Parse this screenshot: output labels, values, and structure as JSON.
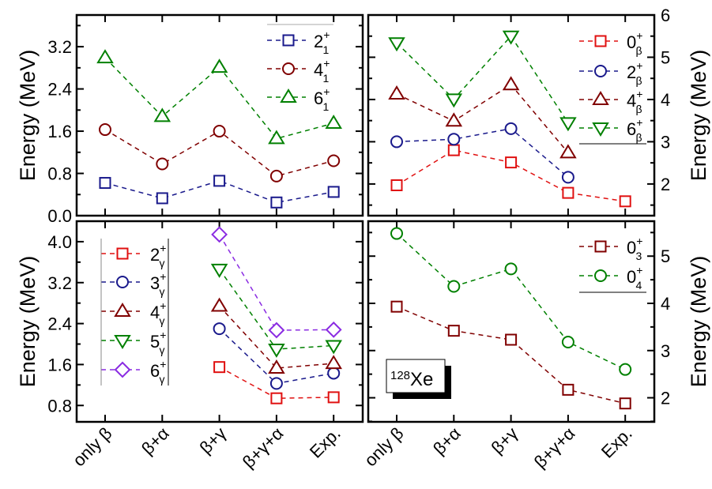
{
  "chart_data": [
    {
      "type": "line",
      "panel": "top-left",
      "ylabel": "Energy (MeV)",
      "yaxis_side": "left",
      "ylim": [
        0,
        3.8
      ],
      "yticks": [
        "0.0",
        "0.8",
        "1.6",
        "2.4",
        "3.2"
      ],
      "ytick_values": [
        0,
        0.8,
        1.6,
        2.4,
        3.2
      ],
      "minor_step": 0.4,
      "categories": [
        "only β",
        "β+α",
        "β+γ",
        "β+γ+α",
        "Exp."
      ],
      "legend": "top-right",
      "series": [
        {
          "name": {
            "J": "2",
            "sup": "+",
            "sub": "1"
          },
          "color": "#1a1a8c",
          "marker": "square",
          "values": [
            0.62,
            0.33,
            0.66,
            0.25,
            0.45
          ]
        },
        {
          "name": {
            "J": "4",
            "sup": "+",
            "sub": "1"
          },
          "color": "#800000",
          "marker": "circle",
          "values": [
            1.63,
            0.98,
            1.6,
            0.75,
            1.04
          ]
        },
        {
          "name": {
            "J": "6",
            "sup": "+",
            "sub": "1"
          },
          "color": "#008000",
          "marker": "triangle-up",
          "values": [
            2.99,
            1.88,
            2.81,
            1.46,
            1.75
          ]
        }
      ]
    },
    {
      "type": "line",
      "panel": "top-right",
      "ylabel": "Energy (MeV)",
      "yaxis_side": "right",
      "ylim": [
        1.25,
        6
      ],
      "yticks": [
        "2",
        "3",
        "4",
        "5",
        "6"
      ],
      "ytick_values": [
        2,
        3,
        4,
        5,
        6
      ],
      "minor_step": 0.5,
      "categories": [
        "only β",
        "β+α",
        "β+γ",
        "β+γ+α",
        "Exp."
      ],
      "legend": "top-right",
      "series": [
        {
          "name": {
            "J": "0",
            "sup": "+",
            "sub": "β"
          },
          "color": "#e01010",
          "marker": "square",
          "values": [
            1.97,
            2.8,
            2.51,
            1.79,
            1.59
          ]
        },
        {
          "name": {
            "J": "2",
            "sup": "+",
            "sub": "β"
          },
          "color": "#1a1a8c",
          "marker": "circle",
          "values": [
            3.0,
            3.06,
            3.31,
            2.16,
            null
          ]
        },
        {
          "name": {
            "J": "4",
            "sup": "+",
            "sub": "β"
          },
          "color": "#800000",
          "marker": "triangle-up",
          "values": [
            4.13,
            3.49,
            4.35,
            2.74,
            null
          ]
        },
        {
          "name": {
            "J": "6",
            "sup": "+",
            "sub": "β"
          },
          "color": "#008000",
          "marker": "triangle-down",
          "values": [
            5.34,
            4.01,
            5.5,
            3.45,
            null
          ]
        }
      ]
    },
    {
      "type": "line",
      "panel": "bottom-left",
      "ylabel": "Energy (MeV)",
      "yaxis_side": "left",
      "ylim": [
        0.48,
        4.4
      ],
      "yticks": [
        "0.8",
        "1.6",
        "2.4",
        "3.2",
        "4.0"
      ],
      "ytick_values": [
        0.8,
        1.6,
        2.4,
        3.2,
        4.0
      ],
      "minor_step": 0.4,
      "categories": [
        "only β",
        "β+α",
        "β+γ",
        "β+γ+α",
        "Exp."
      ],
      "legend": "top-left",
      "series": [
        {
          "name": {
            "J": "2",
            "sup": "+",
            "sub": "γ"
          },
          "color": "#e01010",
          "marker": "square",
          "values": [
            null,
            null,
            1.55,
            0.94,
            0.96
          ]
        },
        {
          "name": {
            "J": "3",
            "sup": "+",
            "sub": "γ"
          },
          "color": "#1a1a8c",
          "marker": "circle",
          "values": [
            null,
            null,
            2.3,
            1.23,
            1.43
          ]
        },
        {
          "name": {
            "J": "4",
            "sup": "+",
            "sub": "γ"
          },
          "color": "#800000",
          "marker": "triangle-up",
          "values": [
            null,
            null,
            2.74,
            1.53,
            1.62
          ]
        },
        {
          "name": {
            "J": "5",
            "sup": "+",
            "sub": "γ"
          },
          "color": "#008000",
          "marker": "triangle-down",
          "values": [
            null,
            null,
            3.46,
            1.9,
            1.97
          ]
        },
        {
          "name": {
            "J": "6",
            "sup": "+",
            "sub": "γ"
          },
          "color": "#8a2be2",
          "marker": "diamond",
          "values": [
            null,
            null,
            4.14,
            2.27,
            2.28
          ]
        }
      ]
    },
    {
      "type": "line",
      "panel": "bottom-right",
      "ylabel": "Energy (MeV)",
      "yaxis_side": "right",
      "ylim": [
        1.49,
        5.74
      ],
      "yticks": [
        "2",
        "3",
        "4",
        "5"
      ],
      "ytick_values": [
        2,
        3,
        4,
        5
      ],
      "minor_step": 0.5,
      "categories": [
        "only β",
        "β+α",
        "β+γ",
        "β+γ+α",
        "Exp."
      ],
      "legend": "top-right",
      "annotation": {
        "sup": "128",
        "text": "Xe"
      },
      "series": [
        {
          "name": {
            "J": "0",
            "sup": "+",
            "sub": "3"
          },
          "color": "#800000",
          "marker": "square",
          "values": [
            3.93,
            3.42,
            3.23,
            2.17,
            1.88
          ]
        },
        {
          "name": {
            "J": "0",
            "sup": "+",
            "sub": "4"
          },
          "color": "#008000",
          "marker": "circle",
          "values": [
            5.48,
            4.36,
            4.73,
            3.18,
            2.6
          ]
        }
      ]
    }
  ]
}
